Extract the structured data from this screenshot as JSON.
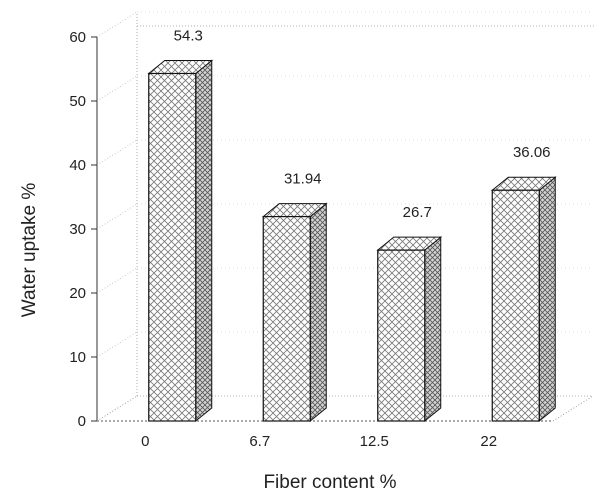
{
  "chart_data": {
    "type": "bar",
    "categories": [
      "0",
      "6.7",
      "12.5",
      "22"
    ],
    "values": [
      54.3,
      31.94,
      26.7,
      36.06
    ],
    "value_labels": [
      "54.3",
      "31.94",
      "26.7",
      "36.06"
    ],
    "xlabel": "Fiber content %",
    "ylabel": "Water uptake %",
    "ylim": [
      0,
      60
    ],
    "yticks": [
      "0",
      "10",
      "20",
      "30",
      "40",
      "50",
      "60"
    ],
    "style": "3d-bars-crosshatch",
    "grid": true
  }
}
